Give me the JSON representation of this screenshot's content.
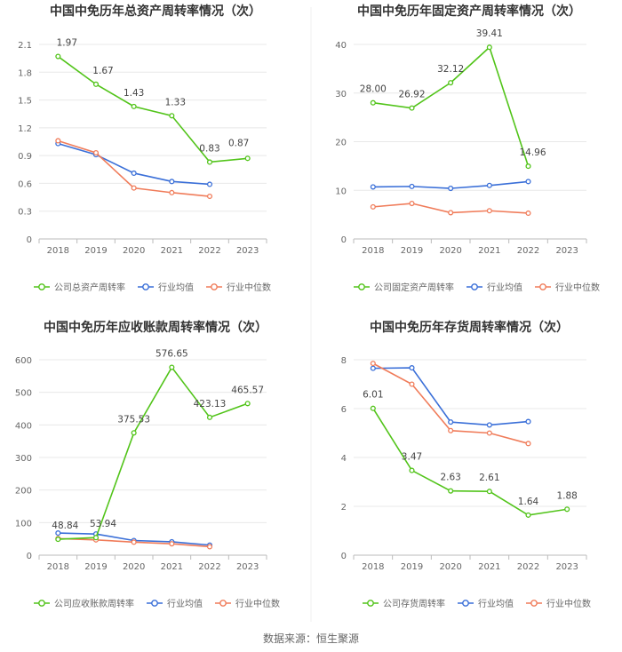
{
  "source": "数据来源：恒生聚源",
  "colors": {
    "company": "#52c41a",
    "average": "#3a6fd8",
    "median": "#f07c5a",
    "grid": "#e8e8e8",
    "axis": "#bbbbbb",
    "text": "#666666",
    "title": "#333333",
    "label": "#444444"
  },
  "chart_data": [
    {
      "type": "line",
      "title": "中国中免历年总资产周转率情况（次）",
      "categories": [
        "2018",
        "2019",
        "2020",
        "2021",
        "2022",
        "2023"
      ],
      "ylim": [
        0,
        2.1
      ],
      "yticks": [
        "0",
        "0.3",
        "0.6",
        "0.9",
        "1.2",
        "1.5",
        "1.8",
        "2.1"
      ],
      "series": [
        {
          "name": "公司总资产周转率",
          "key": "company",
          "values": [
            1.97,
            1.67,
            1.43,
            1.33,
            0.83,
            0.87
          ],
          "labels": [
            "1.97",
            "1.67",
            "1.43",
            "1.33",
            "0.83",
            "0.87"
          ]
        },
        {
          "name": "行业均值",
          "key": "average",
          "values": [
            1.03,
            0.91,
            0.71,
            0.62,
            0.59,
            null
          ]
        },
        {
          "name": "行业中位数",
          "key": "median",
          "values": [
            1.06,
            0.93,
            0.55,
            0.5,
            0.46,
            null
          ]
        }
      ]
    },
    {
      "type": "line",
      "title": "中国中免历年固定资产周转率情况（次）",
      "categories": [
        "2018",
        "2019",
        "2020",
        "2021",
        "2022",
        "2023"
      ],
      "ylim": [
        0,
        40
      ],
      "yticks": [
        "0",
        "10",
        "20",
        "30",
        "40"
      ],
      "series": [
        {
          "name": "公司固定资产周转率",
          "key": "company",
          "values": [
            28.0,
            26.92,
            32.12,
            39.41,
            14.96,
            null
          ],
          "labels": [
            "28.00",
            "26.92",
            "32.12",
            "39.41",
            "14.96",
            ""
          ]
        },
        {
          "name": "行业均值",
          "key": "average",
          "values": [
            10.7,
            10.8,
            10.4,
            11.0,
            11.8,
            null
          ]
        },
        {
          "name": "行业中位数",
          "key": "median",
          "values": [
            6.6,
            7.3,
            5.4,
            5.8,
            5.3,
            null
          ]
        }
      ]
    },
    {
      "type": "line",
      "title": "中国中免历年应收账款周转率情况（次）",
      "categories": [
        "2018",
        "2019",
        "2020",
        "2021",
        "2022",
        "2023"
      ],
      "ylim": [
        0,
        600
      ],
      "yticks": [
        "0",
        "100",
        "200",
        "300",
        "400",
        "500",
        "600"
      ],
      "series": [
        {
          "name": "公司应收账款周转率",
          "key": "company",
          "values": [
            48.84,
            53.94,
            375.53,
            576.65,
            423.13,
            465.57
          ],
          "labels": [
            "48.84",
            "53.94",
            "375.53",
            "576.65",
            "423.13",
            "465.57"
          ]
        },
        {
          "name": "行业均值",
          "key": "average",
          "values": [
            68,
            65,
            45,
            41,
            31,
            null
          ]
        },
        {
          "name": "行业中位数",
          "key": "median",
          "values": [
            51,
            47,
            40,
            35,
            26,
            null
          ]
        }
      ]
    },
    {
      "type": "line",
      "title": "中国中免历年存货周转率情况（次）",
      "categories": [
        "2018",
        "2019",
        "2020",
        "2021",
        "2022",
        "2023"
      ],
      "ylim": [
        0,
        8
      ],
      "yticks": [
        "0",
        "2",
        "4",
        "6",
        "8"
      ],
      "series": [
        {
          "name": "公司存货周转率",
          "key": "company",
          "values": [
            6.01,
            3.47,
            2.63,
            2.61,
            1.64,
            1.88
          ],
          "labels": [
            "6.01",
            "3.47",
            "2.63",
            "2.61",
            "1.64",
            "1.88"
          ]
        },
        {
          "name": "行业均值",
          "key": "average",
          "values": [
            7.65,
            7.67,
            5.45,
            5.33,
            5.47,
            null
          ]
        },
        {
          "name": "行业中位数",
          "key": "median",
          "values": [
            7.85,
            7.0,
            5.1,
            5.0,
            4.57,
            null
          ]
        }
      ]
    }
  ]
}
